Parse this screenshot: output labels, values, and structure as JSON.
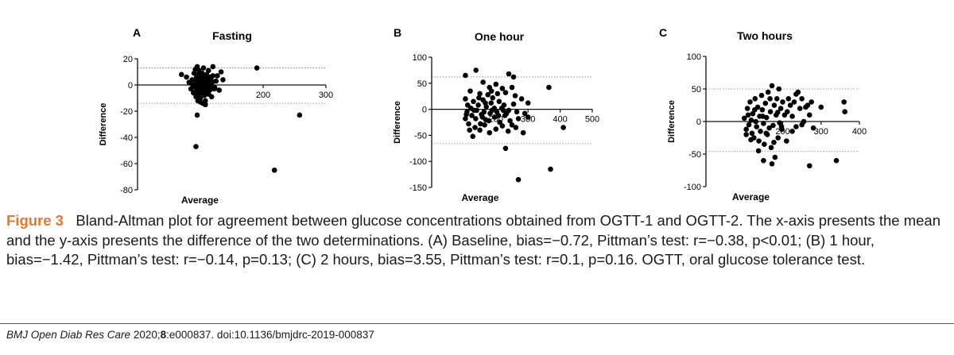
{
  "chart_data": [
    {
      "type": "scatter",
      "panel": "A",
      "title": "Fasting",
      "xlabel": "Average",
      "ylabel": "Difference",
      "xlim": [
        0,
        300
      ],
      "ylim": [
        -80,
        20
      ],
      "xticks": [
        100,
        200,
        300
      ],
      "yticks": [
        20,
        0,
        -20,
        -40,
        -60,
        -80
      ],
      "xtick_labels": [
        "100",
        "200",
        "300"
      ],
      "ytick_labels": [
        "20",
        "0",
        "-20",
        "-40",
        "-60",
        "-80"
      ],
      "limits_of_agreement": [
        13,
        -14
      ],
      "points": [
        [
          70,
          8
        ],
        [
          78,
          6
        ],
        [
          82,
          2
        ],
        [
          85,
          -3
        ],
        [
          87,
          4
        ],
        [
          88,
          0
        ],
        [
          89,
          -6
        ],
        [
          90,
          9
        ],
        [
          90,
          -1
        ],
        [
          91,
          3
        ],
        [
          92,
          12
        ],
        [
          92,
          -5
        ],
        [
          93,
          1
        ],
        [
          93,
          -9
        ],
        [
          94,
          6
        ],
        [
          94,
          -2
        ],
        [
          95,
          14
        ],
        [
          95,
          3
        ],
        [
          96,
          -4
        ],
        [
          96,
          8
        ],
        [
          97,
          0
        ],
        [
          97,
          -7
        ],
        [
          98,
          11
        ],
        [
          98,
          2
        ],
        [
          99,
          -3
        ],
        [
          99,
          5
        ],
        [
          100,
          -10
        ],
        [
          100,
          1
        ],
        [
          101,
          7
        ],
        [
          101,
          -2
        ],
        [
          102,
          4
        ],
        [
          102,
          -6
        ],
        [
          103,
          0
        ],
        [
          103,
          9
        ],
        [
          104,
          -4
        ],
        [
          104,
          3
        ],
        [
          105,
          13
        ],
        [
          105,
          -1
        ],
        [
          106,
          6
        ],
        [
          106,
          -8
        ],
        [
          107,
          2
        ],
        [
          107,
          -3
        ],
        [
          108,
          5
        ],
        [
          108,
          -12
        ],
        [
          109,
          0
        ],
        [
          110,
          8
        ],
        [
          110,
          -5
        ],
        [
          111,
          3
        ],
        [
          112,
          -2
        ],
        [
          113,
          11
        ],
        [
          113,
          -7
        ],
        [
          114,
          1
        ],
        [
          115,
          6
        ],
        [
          115,
          -4
        ],
        [
          116,
          -1
        ],
        [
          117,
          4
        ],
        [
          118,
          -9
        ],
        [
          119,
          2
        ],
        [
          120,
          14
        ],
        [
          120,
          7
        ],
        [
          122,
          -3
        ],
        [
          123,
          -2
        ],
        [
          125,
          3
        ],
        [
          127,
          7
        ],
        [
          130,
          -4
        ],
        [
          133,
          10
        ],
        [
          136,
          4
        ],
        [
          100,
          -13
        ],
        [
          104,
          -14
        ],
        [
          108,
          -15
        ],
        [
          96,
          -12
        ],
        [
          95,
          -23
        ],
        [
          93,
          -47
        ],
        [
          190,
          13
        ],
        [
          258,
          -23
        ],
        [
          218,
          -65
        ]
      ]
    },
    {
      "type": "scatter",
      "panel": "B",
      "title": "One hour",
      "xlabel": "Average",
      "ylabel": "Difference",
      "xlim": [
        0,
        500
      ],
      "ylim": [
        -150,
        100
      ],
      "xticks": [
        200,
        300,
        400,
        500
      ],
      "yticks": [
        100,
        50,
        0,
        -50,
        -100,
        -150
      ],
      "xtick_labels": [
        "200",
        "300",
        "400",
        "500"
      ],
      "ytick_labels": [
        "100",
        "50",
        "0",
        "-50",
        "-100",
        "-150"
      ],
      "limits_of_agreement": [
        62,
        -66
      ],
      "points": [
        [
          105,
          65
        ],
        [
          138,
          75
        ],
        [
          240,
          68
        ],
        [
          255,
          62
        ],
        [
          160,
          52
        ],
        [
          200,
          48
        ],
        [
          220,
          40
        ],
        [
          180,
          42
        ],
        [
          250,
          42
        ],
        [
          120,
          35
        ],
        [
          150,
          30
        ],
        [
          175,
          28
        ],
        [
          190,
          22
        ],
        [
          205,
          30
        ],
        [
          230,
          32
        ],
        [
          260,
          26
        ],
        [
          280,
          20
        ],
        [
          300,
          12
        ],
        [
          130,
          15
        ],
        [
          145,
          8
        ],
        [
          160,
          18
        ],
        [
          170,
          5
        ],
        [
          185,
          12
        ],
        [
          195,
          2
        ],
        [
          210,
          15
        ],
        [
          225,
          8
        ],
        [
          240,
          -2
        ],
        [
          255,
          10
        ],
        [
          265,
          -5
        ],
        [
          110,
          -5
        ],
        [
          125,
          -12
        ],
        [
          140,
          -2
        ],
        [
          155,
          -10
        ],
        [
          168,
          -20
        ],
        [
          182,
          -8
        ],
        [
          196,
          -15
        ],
        [
          212,
          -25
        ],
        [
          228,
          -12
        ],
        [
          244,
          -22
        ],
        [
          270,
          -18
        ],
        [
          290,
          -8
        ],
        [
          115,
          -28
        ],
        [
          135,
          -35
        ],
        [
          150,
          -40
        ],
        [
          165,
          -30
        ],
        [
          180,
          -45
        ],
        [
          200,
          -38
        ],
        [
          220,
          -32
        ],
        [
          105,
          -18
        ],
        [
          118,
          -40
        ],
        [
          128,
          -52
        ],
        [
          250,
          -30
        ],
        [
          105,
          20
        ],
        [
          112,
          8
        ],
        [
          132,
          -2
        ],
        [
          147,
          22
        ],
        [
          163,
          -5
        ],
        [
          178,
          -22
        ],
        [
          203,
          -5
        ],
        [
          218,
          2
        ],
        [
          233,
          -8
        ],
        [
          262,
          -35
        ],
        [
          285,
          -45
        ],
        [
          300,
          -15
        ],
        [
          108,
          -10
        ],
        [
          122,
          2
        ],
        [
          137,
          -18
        ],
        [
          152,
          -28
        ],
        [
          167,
          12
        ],
        [
          188,
          -2
        ],
        [
          208,
          -12
        ],
        [
          223,
          -2
        ],
        [
          238,
          -42
        ],
        [
          158,
          -15
        ],
        [
          186,
          35
        ],
        [
          365,
          42
        ],
        [
          410,
          -35
        ],
        [
          230,
          -75
        ],
        [
          270,
          -135
        ],
        [
          370,
          -115
        ]
      ]
    },
    {
      "type": "scatter",
      "panel": "C",
      "title": "Two hours",
      "xlabel": "Average",
      "ylabel": "Difference",
      "xlim": [
        0,
        400
      ],
      "ylim": [
        -100,
        100
      ],
      "xticks": [
        200,
        300,
        400
      ],
      "yticks": [
        100,
        50,
        0,
        -50,
        -100
      ],
      "xtick_labels": [
        "200",
        "300",
        "400"
      ],
      "ytick_labels": [
        "100",
        "50",
        "0",
        "-50",
        "-100"
      ],
      "limits_of_agreement": [
        50,
        -46
      ],
      "points": [
        [
          100,
          5
        ],
        [
          105,
          -12
        ],
        [
          108,
          20
        ],
        [
          112,
          -5
        ],
        [
          115,
          30
        ],
        [
          118,
          2
        ],
        [
          120,
          -18
        ],
        [
          122,
          12
        ],
        [
          125,
          -25
        ],
        [
          128,
          35
        ],
        [
          130,
          0
        ],
        [
          132,
          -8
        ],
        [
          135,
          22
        ],
        [
          138,
          -30
        ],
        [
          140,
          8
        ],
        [
          142,
          -15
        ],
        [
          145,
          40
        ],
        [
          147,
          18
        ],
        [
          150,
          -3
        ],
        [
          152,
          -35
        ],
        [
          155,
          28
        ],
        [
          158,
          6
        ],
        [
          160,
          -20
        ],
        [
          162,
          45
        ],
        [
          165,
          -10
        ],
        [
          168,
          15
        ],
        [
          170,
          -40
        ],
        [
          172,
          55
        ],
        [
          175,
          -6
        ],
        [
          178,
          25
        ],
        [
          180,
          -55
        ],
        [
          183,
          10
        ],
        [
          185,
          35
        ],
        [
          188,
          -25
        ],
        [
          190,
          50
        ],
        [
          192,
          -2
        ],
        [
          195,
          20
        ],
        [
          198,
          -12
        ],
        [
          200,
          30
        ],
        [
          105,
          -20
        ],
        [
          110,
          10
        ],
        [
          117,
          -28
        ],
        [
          127,
          18
        ],
        [
          137,
          -45
        ],
        [
          148,
          8
        ],
        [
          157,
          -18
        ],
        [
          167,
          35
        ],
        [
          177,
          -32
        ],
        [
          187,
          14
        ],
        [
          197,
          -8
        ],
        [
          205,
          10
        ],
        [
          210,
          -30
        ],
        [
          212,
          15
        ],
        [
          215,
          35
        ],
        [
          220,
          25
        ],
        [
          225,
          -15
        ],
        [
          230,
          30
        ],
        [
          235,
          -8
        ],
        [
          240,
          45
        ],
        [
          245,
          20
        ],
        [
          250,
          35
        ],
        [
          255,
          0
        ],
        [
          260,
          22
        ],
        [
          265,
          25
        ],
        [
          270,
          10
        ],
        [
          275,
          30
        ],
        [
          225,
          8
        ],
        [
          235,
          42
        ],
        [
          250,
          -5
        ],
        [
          280,
          -10
        ],
        [
          300,
          22
        ],
        [
          360,
          30
        ],
        [
          362,
          15
        ],
        [
          340,
          -60
        ],
        [
          270,
          -68
        ],
        [
          172,
          -65
        ],
        [
          150,
          -60
        ]
      ]
    }
  ],
  "caption": {
    "label": "Figure 3",
    "text": "Bland-Altman plot for agreement between glucose concentrations obtained from OGTT-1 and OGTT-2. The x-axis presents the mean and the y-axis presents the difference of the two determinations. (A) Baseline, bias=−0.72, Pittman’s test: r=−0.38, p<0.01; (B) 1 hour, bias=−1.42, Pittman’s test: r=−0.14, p=0.13; (C) 2 hours, bias=3.55, Pittman’s test: r=0.1, p=0.16. OGTT, oral glucose tolerance test."
  },
  "footer": {
    "journal": "BMJ Open Diab Res Care",
    "year": " 2020;",
    "volume": "8",
    "rest": ":e000837. doi:10.1136/bmjdrc-2019-000837"
  }
}
